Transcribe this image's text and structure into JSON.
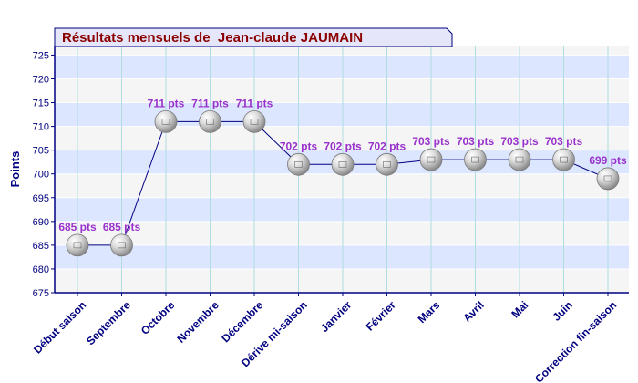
{
  "chart_data": {
    "type": "line",
    "title": "Résultats mensuels de  Jean-claude JAUMAIN",
    "ylabel": "Points",
    "xlabel": "",
    "ylim": [
      675,
      727
    ],
    "yticks": [
      675,
      680,
      685,
      690,
      695,
      700,
      705,
      710,
      715,
      720,
      725
    ],
    "categories": [
      "Début saison",
      "Septembre",
      "Octobre",
      "Novembre",
      "Décembre",
      "Dérive mi-saison",
      "Janvier",
      "Février",
      "Mars",
      "Avril",
      "Mai",
      "Juin",
      "Correction fin-saison"
    ],
    "values": [
      685,
      685,
      711,
      711,
      711,
      702,
      702,
      702,
      703,
      703,
      703,
      703,
      699
    ],
    "data_labels": [
      "685 pts",
      "685 pts",
      "711 pts",
      "711 pts",
      "711 pts",
      "702 pts",
      "702 pts",
      "702 pts",
      "703 pts",
      "703 pts",
      "703 pts",
      "703 pts",
      "699 pts"
    ],
    "grid": true,
    "colors": {
      "title_text": "#8b0000",
      "title_bg": "#e6e6fa",
      "band_a": "#dde6ff",
      "band_b": "#f5f5f5",
      "axis": "#000080",
      "tick_label": "#000080",
      "data_label": "#9932cc",
      "line": "#000080",
      "grid_v": "#b0dde0",
      "marker": "#c0c0c0"
    }
  }
}
